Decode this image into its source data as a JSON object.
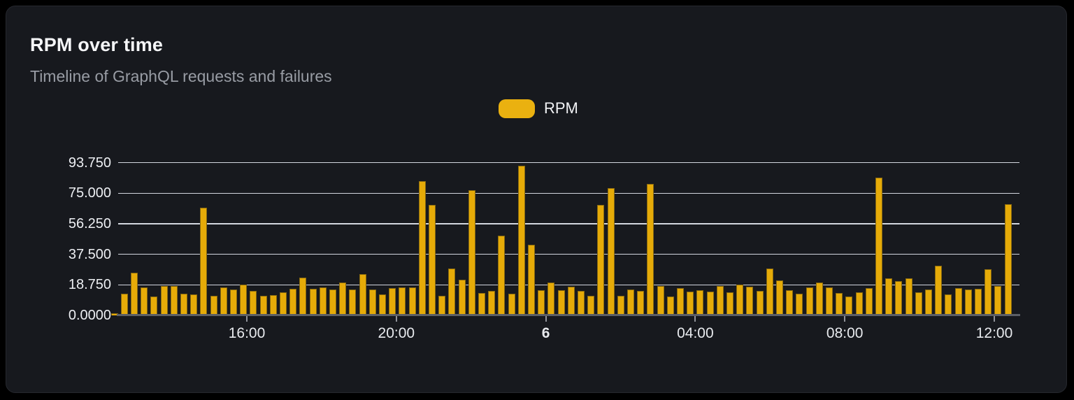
{
  "card": {
    "title": "RPM over time",
    "subtitle": "Timeline of GraphQL requests and failures"
  },
  "legend": {
    "label": "RPM",
    "swatch_color": "#eab110"
  },
  "colors": {
    "card_background": "#17191e",
    "page_background": "#000000",
    "bar": "#e6ab08",
    "gridline": "#e4e7f0",
    "axis": "#5c5f66",
    "title_text": "#f5f6f8",
    "subtitle_text": "#989ca4"
  },
  "chart_data": {
    "type": "bar",
    "title": "RPM over time",
    "subtitle": "Timeline of GraphQL requests and failures",
    "legend": [
      {
        "name": "RPM",
        "color": "#e6ab08"
      }
    ],
    "legend_position": "top-center",
    "grid": "horizontal",
    "y_axis": {
      "range": [
        0,
        96.5
      ],
      "ticks": [
        {
          "label": "93.750",
          "value": 93.75
        },
        {
          "label": "75.000",
          "value": 75
        },
        {
          "label": "56.250",
          "value": 56.25
        },
        {
          "label": "37.500",
          "value": 37.5
        },
        {
          "label": "18.750",
          "value": 18.75
        },
        {
          "label": "0.0000",
          "value": 0
        }
      ]
    },
    "x_axis": {
      "ticks": [
        {
          "label": "16:00",
          "bold": false
        },
        {
          "label": "20:00",
          "bold": false
        },
        {
          "label": "6",
          "bold": true
        },
        {
          "label": "04:00",
          "bold": false
        },
        {
          "label": "08:00",
          "bold": false
        },
        {
          "label": "12:00",
          "bold": false
        }
      ]
    },
    "series": [
      {
        "name": "RPM",
        "color": "#e6ab08",
        "values": [
          1.5,
          13.2,
          26,
          17.2,
          11.4,
          18.2,
          18.2,
          13.3,
          12.9,
          66.1,
          12.2,
          17.2,
          16,
          19,
          15,
          11.9,
          12.5,
          14,
          16.2,
          23.2,
          16.5,
          17.2,
          16,
          20.3,
          16,
          25.5,
          16,
          12.9,
          16.9,
          17.2,
          17.2,
          82.6,
          68,
          12.2,
          28.6,
          21.9,
          76.9,
          13.6,
          15,
          48.9,
          13.2,
          92,
          43.2,
          15.3,
          20.3,
          15.6,
          17.5,
          15,
          12.2,
          68,
          78,
          11.9,
          15.7,
          15,
          80.6,
          17.9,
          11.4,
          16.7,
          14.7,
          15.5,
          14.7,
          18.2,
          14.3,
          19,
          17.5,
          15,
          28.6,
          21.5,
          15.5,
          13.3,
          17,
          20.3,
          17,
          13.9,
          11.7,
          14.2,
          16.6,
          84.4,
          22.9,
          21,
          22.9,
          14.2,
          16,
          30.3,
          12.9,
          16.7,
          16,
          16.5,
          28.2,
          17.9,
          68.4
        ]
      }
    ]
  }
}
